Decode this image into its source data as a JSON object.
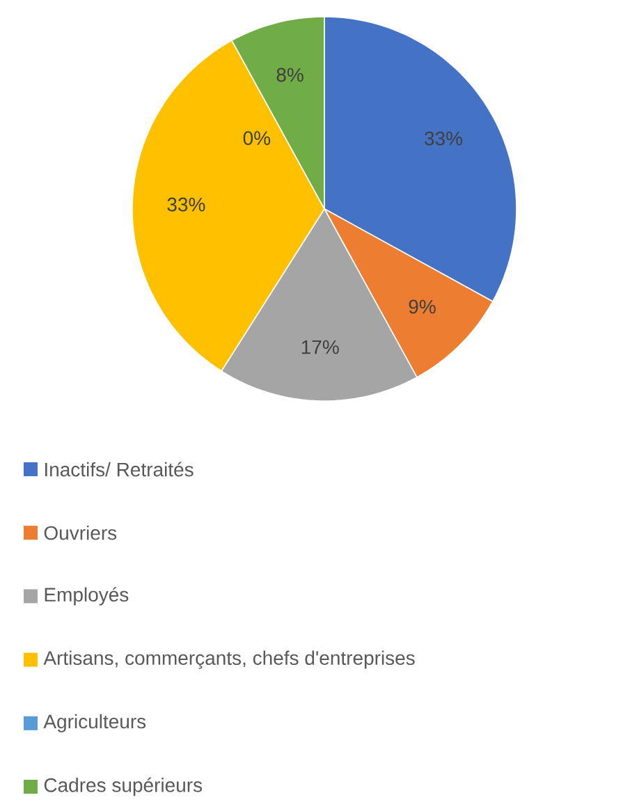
{
  "chart_data": {
    "type": "pie",
    "categories": [
      "Inactifs/ Retraités",
      "Ouvriers",
      "Employés",
      "Artisans, commerçants, chefs d'entreprises",
      "Agriculteurs",
      "Cadres supérieurs"
    ],
    "values": [
      33,
      9,
      17,
      33,
      0,
      8
    ],
    "colors": [
      "#4472c4",
      "#ed7d31",
      "#a5a5a5",
      "#ffc000",
      "#5b9bd5",
      "#70ad47"
    ],
    "value_labels": [
      "33%",
      "9%",
      "17%",
      "33%",
      "0%",
      "8%"
    ],
    "legend": "bottom"
  }
}
